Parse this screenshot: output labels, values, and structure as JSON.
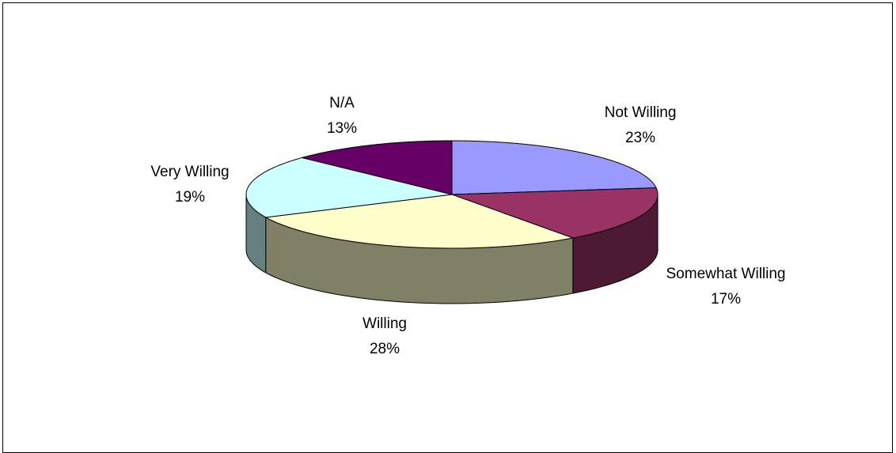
{
  "chart_data": {
    "type": "pie",
    "style": "3d",
    "title": "",
    "slices": [
      {
        "label": "Not Willing",
        "value": 23,
        "display": "23%",
        "color": "#9999ff"
      },
      {
        "label": "Somewhat Willing",
        "value": 17,
        "display": "17%",
        "color": "#993366"
      },
      {
        "label": "Willing",
        "value": 28,
        "display": "28%",
        "color": "#ffffcc"
      },
      {
        "label": "Very Willing",
        "value": 19,
        "display": "19%",
        "color": "#ccffff"
      },
      {
        "label": "N/A",
        "value": 13,
        "display": "13%",
        "color": "#660066"
      }
    ],
    "legend": "none",
    "data_labels": "category and percent"
  }
}
